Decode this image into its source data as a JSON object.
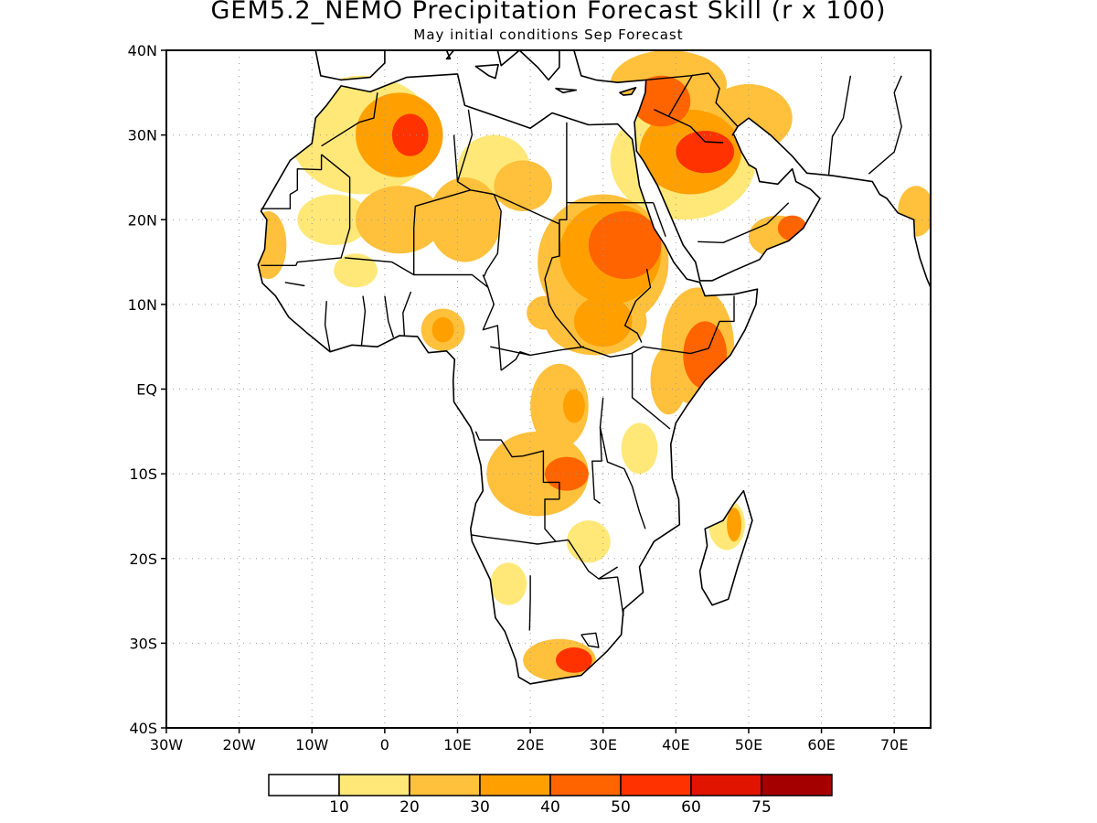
{
  "title": "GEM5.2_NEMO Precipitation Forecast Skill (r x 100)",
  "subtitle": "May initial conditions  Sep Forecast",
  "axes": {
    "y_ticks": [
      "40N",
      "30N",
      "20N",
      "10N",
      "EQ",
      "10S",
      "20S",
      "30S",
      "40S"
    ],
    "x_ticks": [
      "30W",
      "20W",
      "10W",
      "0",
      "10E",
      "20E",
      "30E",
      "40E",
      "50E",
      "60E",
      "70E"
    ],
    "lat_range": [
      -40,
      40
    ],
    "lon_range": [
      -30,
      75
    ],
    "grid": "dotted"
  },
  "colorbar": {
    "labels": [
      "10",
      "20",
      "30",
      "40",
      "50",
      "60",
      "75"
    ],
    "colors": [
      "#ffffff",
      "#ffe878",
      "#ffc03c",
      "#ffa000",
      "#ff6400",
      "#ff3200",
      "#e11400",
      "#a50000"
    ]
  },
  "skill_blobs": [
    {
      "lon": 3.5,
      "lat": 30,
      "level": 5,
      "rx": 2.5,
      "ry": 2.5
    },
    {
      "lon": 2,
      "lat": 30,
      "level": 3,
      "rx": 6,
      "ry": 5
    },
    {
      "lon": -3,
      "lat": 30,
      "level": 1,
      "rx": 10,
      "ry": 7
    },
    {
      "lon": 15,
      "lat": 26,
      "level": 1,
      "rx": 5,
      "ry": 4
    },
    {
      "lon": 19,
      "lat": 24,
      "level": 2,
      "rx": 4,
      "ry": 3
    },
    {
      "lon": 2,
      "lat": 20,
      "level": 2,
      "rx": 6,
      "ry": 4
    },
    {
      "lon": 11,
      "lat": 20,
      "level": 2,
      "rx": 5,
      "ry": 5
    },
    {
      "lon": -7,
      "lat": 20,
      "level": 1,
      "rx": 5,
      "ry": 3
    },
    {
      "lon": -16,
      "lat": 17,
      "level": 2,
      "rx": 2.5,
      "ry": 4
    },
    {
      "lon": -4,
      "lat": 14,
      "level": 1,
      "rx": 3,
      "ry": 2
    },
    {
      "lon": 33,
      "lat": 17,
      "level": 4,
      "rx": 5,
      "ry": 4
    },
    {
      "lon": 31,
      "lat": 16,
      "level": 3,
      "rx": 7,
      "ry": 6
    },
    {
      "lon": 30,
      "lat": 15,
      "level": 2,
      "rx": 9,
      "ry": 8
    },
    {
      "lon": 30,
      "lat": 8,
      "level": 3,
      "rx": 4,
      "ry": 3
    },
    {
      "lon": 29,
      "lat": 8,
      "level": 2,
      "rx": 7,
      "ry": 4
    },
    {
      "lon": 22,
      "lat": 9,
      "level": 2,
      "rx": 2.5,
      "ry": 2
    },
    {
      "lon": 8,
      "lat": 7,
      "level": 3,
      "rx": 1.5,
      "ry": 1.5
    },
    {
      "lon": 8,
      "lat": 7,
      "level": 2,
      "rx": 3,
      "ry": 2.5
    },
    {
      "lon": 44,
      "lat": 4,
      "level": 4,
      "rx": 3,
      "ry": 4
    },
    {
      "lon": 43,
      "lat": 5,
      "level": 2,
      "rx": 5,
      "ry": 7
    },
    {
      "lon": 39,
      "lat": 1,
      "level": 2,
      "rx": 2.5,
      "ry": 4
    },
    {
      "lon": 24,
      "lat": -2,
      "level": 2,
      "rx": 4,
      "ry": 5
    },
    {
      "lon": 26,
      "lat": -2,
      "level": 3,
      "rx": 1.5,
      "ry": 2
    },
    {
      "lon": 25,
      "lat": -10,
      "level": 4,
      "rx": 3,
      "ry": 2
    },
    {
      "lon": 21,
      "lat": -10,
      "level": 2,
      "rx": 7,
      "ry": 5
    },
    {
      "lon": 35,
      "lat": -7,
      "level": 1,
      "rx": 2.5,
      "ry": 3
    },
    {
      "lon": 28,
      "lat": -18,
      "level": 1,
      "rx": 3,
      "ry": 2.5
    },
    {
      "lon": 17,
      "lat": -23,
      "level": 1,
      "rx": 2.5,
      "ry": 2.5
    },
    {
      "lon": 48,
      "lat": -16,
      "level": 3,
      "rx": 1,
      "ry": 2
    },
    {
      "lon": 47,
      "lat": -16,
      "level": 1,
      "rx": 2.5,
      "ry": 3
    },
    {
      "lon": 26,
      "lat": -32,
      "level": 5,
      "rx": 2.5,
      "ry": 1.5
    },
    {
      "lon": 24,
      "lat": -32,
      "level": 2,
      "rx": 5,
      "ry": 2.5
    },
    {
      "lon": 44,
      "lat": 28,
      "level": 5,
      "rx": 4,
      "ry": 2.5
    },
    {
      "lon": 42,
      "lat": 28,
      "level": 3,
      "rx": 7,
      "ry": 5
    },
    {
      "lon": 41,
      "lat": 27,
      "level": 1,
      "rx": 10,
      "ry": 7
    },
    {
      "lon": 38,
      "lat": 34,
      "level": 4,
      "rx": 4,
      "ry": 3
    },
    {
      "lon": 39,
      "lat": 36,
      "level": 2,
      "rx": 8,
      "ry": 4
    },
    {
      "lon": 50,
      "lat": 32,
      "level": 2,
      "rx": 6,
      "ry": 4
    },
    {
      "lon": 56,
      "lat": 19,
      "level": 4,
      "rx": 2,
      "ry": 1.5
    },
    {
      "lon": 54,
      "lat": 18,
      "level": 2,
      "rx": 4,
      "ry": 2.5
    },
    {
      "lon": 73,
      "lat": 21,
      "level": 2,
      "rx": 2.5,
      "ry": 3
    }
  ]
}
